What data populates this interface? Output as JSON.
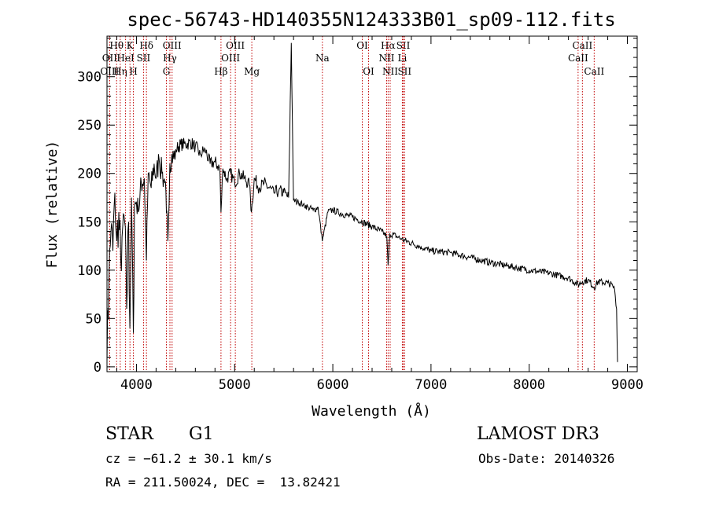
{
  "chart_data": {
    "type": "line",
    "title": "spec-56743-HD140355N124333B01_sp09-112.fits",
    "xlabel": "Wavelength (Å)",
    "ylabel": "Flux (relative)",
    "xlim": [
      3700,
      9100
    ],
    "ylim": [
      -5,
      342
    ],
    "xticks": [
      4000,
      5000,
      6000,
      7000,
      8000,
      9000
    ],
    "yticks": [
      0,
      50,
      100,
      150,
      200,
      250,
      300
    ],
    "grid": false,
    "series": [
      {
        "name": "spectrum",
        "x": [
          3700,
          3720,
          3740,
          3760,
          3780,
          3800,
          3820,
          3840,
          3860,
          3880,
          3900,
          3920,
          3933,
          3950,
          3968,
          3980,
          4000,
          4020,
          4050,
          4080,
          4101,
          4120,
          4150,
          4180,
          4200,
          4230,
          4260,
          4290,
          4305,
          4320,
          4340,
          4360,
          4380,
          4400,
          4450,
          4500,
          4550,
          4600,
          4650,
          4700,
          4750,
          4800,
          4850,
          4861,
          4880,
          4920,
          4960,
          5000,
          5050,
          5100,
          5150,
          5172,
          5200,
          5250,
          5300,
          5350,
          5400,
          5450,
          5500,
          5550,
          5577,
          5600,
          5650,
          5700,
          5750,
          5800,
          5850,
          5893,
          5950,
          6000,
          6100,
          6200,
          6300,
          6400,
          6500,
          6550,
          6563,
          6580,
          6650,
          6700,
          6800,
          6900,
          7000,
          7200,
          7400,
          7600,
          7800,
          8000,
          8200,
          8400,
          8498,
          8542,
          8600,
          8662,
          8700,
          8800,
          8850,
          8870,
          8890,
          8900
        ],
        "y": [
          5,
          90,
          140,
          120,
          180,
          130,
          160,
          110,
          145,
          150,
          60,
          150,
          40,
          175,
          35,
          165,
          170,
          160,
          190,
          195,
          110,
          200,
          185,
          210,
          195,
          215,
          200,
          190,
          160,
          130,
          210,
          220,
          215,
          225,
          230,
          230,
          232,
          228,
          220,
          225,
          210,
          212,
          205,
          160,
          205,
          195,
          200,
          190,
          200,
          195,
          188,
          160,
          195,
          185,
          190,
          185,
          180,
          182,
          180,
          175,
          335,
          172,
          170,
          168,
          165,
          162,
          165,
          130,
          160,
          162,
          158,
          155,
          150,
          145,
          140,
          135,
          105,
          138,
          135,
          132,
          128,
          124,
          120,
          118,
          113,
          108,
          104,
          100,
          97,
          92,
          85,
          88,
          90,
          82,
          88,
          87,
          84,
          80,
          60,
          5
        ]
      }
    ],
    "line_markers": [
      {
        "label": "Hθ",
        "x": 3798,
        "row": 1
      },
      {
        "label": "OII",
        "x": 3727,
        "row": 2
      },
      {
        "label": "OIII",
        "x": 3727,
        "row": 3
      },
      {
        "label": "Hη",
        "x": 3835,
        "row": 3
      },
      {
        "label": "HeI",
        "x": 3889,
        "row": 2
      },
      {
        "label": "K",
        "x": 3934,
        "row": 1
      },
      {
        "label": "H",
        "x": 3969,
        "row": 3
      },
      {
        "label": "SII",
        "x": 4072,
        "row": 2
      },
      {
        "label": "Hδ",
        "x": 4102,
        "row": 1
      },
      {
        "label": "OIII",
        "x": 4363,
        "row": 1
      },
      {
        "label": "Hγ",
        "x": 4341,
        "row": 2
      },
      {
        "label": "G",
        "x": 4305,
        "row": 3
      },
      {
        "label": "Hβ",
        "x": 4861,
        "row": 3
      },
      {
        "label": "OIII",
        "x": 5007,
        "row": 1
      },
      {
        "label": "OIII",
        "x": 4959,
        "row": 2
      },
      {
        "label": "Mg",
        "x": 5175,
        "row": 3
      },
      {
        "label": "Na",
        "x": 5894,
        "row": 2
      },
      {
        "label": "OI",
        "x": 6300,
        "row": 1
      },
      {
        "label": "OI",
        "x": 6364,
        "row": 3
      },
      {
        "label": "Hα",
        "x": 6563,
        "row": 1
      },
      {
        "label": "NII",
        "x": 6548,
        "row": 2
      },
      {
        "label": "NII",
        "x": 6584,
        "row": 3
      },
      {
        "label": "SII",
        "x": 6717,
        "row": 1
      },
      {
        "label": "Li",
        "x": 6708,
        "row": 2
      },
      {
        "label": "SII",
        "x": 6731,
        "row": 3
      },
      {
        "label": "CaII",
        "x": 8542,
        "row": 1
      },
      {
        "label": "CaII",
        "x": 8498,
        "row": 2
      },
      {
        "label": "CaII",
        "x": 8662,
        "row": 3
      }
    ]
  },
  "info": {
    "object_type": "STAR",
    "subclass": "G1",
    "survey": "LAMOST DR3",
    "redshift": "cz = −61.2 ± 30.1 km/s",
    "obs_date": "Obs-Date: 20140326",
    "coordinates": "RA = 211.50024, DEC =  13.82421"
  },
  "colors": {
    "line": "#000000",
    "marker": "#c00000",
    "axis": "#000000"
  }
}
